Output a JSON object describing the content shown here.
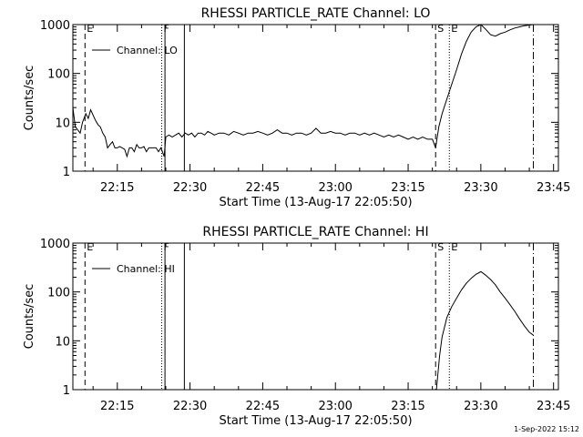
{
  "footer_timestamp": "1-Sep-2022 15:12",
  "colors": {
    "background": "#ffffff",
    "ink": "#000000"
  },
  "chart_data": [
    {
      "type": "line",
      "title": "RHESSI PARTICLE_RATE Channel: LO",
      "xlabel": "Start Time (13-Aug-17 22:05:50)",
      "ylabel": "Counts/sec",
      "y_scale": "log",
      "ylim": [
        1,
        1000
      ],
      "xlim": [
        "22:05:50",
        "23:46:00"
      ],
      "grid": false,
      "legend": {
        "position": "top-left",
        "entries": [
          "Channel: LO"
        ]
      },
      "x_tick_labels": [
        "22:15",
        "22:30",
        "22:45",
        "23:00",
        "23:15",
        "23:30",
        "23:45"
      ],
      "x_tick_times": [
        "22:15",
        "22:30",
        "22:45",
        "23:00",
        "23:15",
        "23:30",
        "23:45"
      ],
      "y_tick_labels": [
        "1",
        "10",
        "100",
        "1000"
      ],
      "y_tick_values": [
        1,
        10,
        100,
        1000
      ],
      "markers": [
        {
          "label": "E",
          "time": "22:08:20",
          "style": "dashed"
        },
        {
          "label": "F",
          "time": "22:24:10",
          "style": "dotted"
        },
        {
          "label": "",
          "time": "22:24:50",
          "style": "solid"
        },
        {
          "label": "",
          "time": "22:28:50",
          "style": "solid"
        },
        {
          "label": "S",
          "time": "23:20:40",
          "style": "dashed"
        },
        {
          "label": "E",
          "time": "23:23:30",
          "style": "dotted"
        },
        {
          "label": "",
          "time": "23:40:50",
          "style": "dashdot"
        }
      ],
      "series": [
        {
          "values": [
            [
              "22:05:50",
              20
            ],
            [
              "22:06:20",
              8
            ],
            [
              "22:06:50",
              7
            ],
            [
              "22:07:20",
              6
            ],
            [
              "22:07:50",
              10
            ],
            [
              "22:08:30",
              15
            ],
            [
              "22:09:00",
              12
            ],
            [
              "22:09:30",
              18
            ],
            [
              "22:10:00",
              14
            ],
            [
              "22:10:30",
              11
            ],
            [
              "22:11:00",
              9
            ],
            [
              "22:11:30",
              8
            ],
            [
              "22:12:00",
              6
            ],
            [
              "22:12:30",
              5
            ],
            [
              "22:13:00",
              3
            ],
            [
              "22:13:30",
              3.5
            ],
            [
              "22:14:00",
              4
            ],
            [
              "22:14:30",
              3
            ],
            [
              "22:15:00",
              3
            ],
            [
              "22:15:30",
              3.2
            ],
            [
              "22:16:00",
              3
            ],
            [
              "22:16:30",
              2.8
            ],
            [
              "22:17:00",
              2
            ],
            [
              "22:17:30",
              3
            ],
            [
              "22:18:00",
              3
            ],
            [
              "22:18:30",
              2.5
            ],
            [
              "22:19:00",
              3.5
            ],
            [
              "22:19:30",
              3
            ],
            [
              "22:20:00",
              3
            ],
            [
              "22:20:30",
              3.2
            ],
            [
              "22:21:00",
              2.5
            ],
            [
              "22:21:30",
              3
            ],
            [
              "22:22:00",
              3
            ],
            [
              "22:22:30",
              3
            ],
            [
              "22:23:00",
              3
            ],
            [
              "22:23:30",
              2.5
            ],
            [
              "22:24:00",
              3
            ],
            [
              "22:24:40",
              2
            ],
            [
              "22:25:00",
              5
            ],
            [
              "22:25:40",
              5.5
            ],
            [
              "22:26:20",
              5
            ],
            [
              "22:27:00",
              5.5
            ],
            [
              "22:27:40",
              6
            ],
            [
              "22:28:20",
              5
            ],
            [
              "22:29:00",
              6
            ],
            [
              "22:29:40",
              5.5
            ],
            [
              "22:30:20",
              6
            ],
            [
              "22:31:00",
              5
            ],
            [
              "22:31:40",
              6
            ],
            [
              "22:32:20",
              6
            ],
            [
              "22:33:00",
              5.5
            ],
            [
              "22:33:40",
              6.5
            ],
            [
              "22:34:20",
              6
            ],
            [
              "22:35:00",
              5.5
            ],
            [
              "22:36:00",
              6
            ],
            [
              "22:37:00",
              6
            ],
            [
              "22:38:00",
              5.5
            ],
            [
              "22:39:00",
              6.5
            ],
            [
              "22:40:00",
              6
            ],
            [
              "22:41:00",
              5.5
            ],
            [
              "22:42:00",
              6
            ],
            [
              "22:43:00",
              6
            ],
            [
              "22:44:00",
              6.5
            ],
            [
              "22:45:00",
              6
            ],
            [
              "22:46:00",
              5.5
            ],
            [
              "22:47:00",
              6
            ],
            [
              "22:48:00",
              7
            ],
            [
              "22:49:00",
              6
            ],
            [
              "22:50:00",
              6
            ],
            [
              "22:51:00",
              5.5
            ],
            [
              "22:52:00",
              6
            ],
            [
              "22:53:00",
              6
            ],
            [
              "22:54:00",
              5.5
            ],
            [
              "22:55:00",
              6
            ],
            [
              "22:56:00",
              7.5
            ],
            [
              "22:57:00",
              6
            ],
            [
              "22:58:00",
              6
            ],
            [
              "22:59:00",
              6.5
            ],
            [
              "23:00:00",
              6
            ],
            [
              "23:01:00",
              6
            ],
            [
              "23:02:00",
              5.5
            ],
            [
              "23:03:00",
              6
            ],
            [
              "23:04:00",
              6
            ],
            [
              "23:05:00",
              5.5
            ],
            [
              "23:06:00",
              6
            ],
            [
              "23:07:00",
              5.5
            ],
            [
              "23:08:00",
              6
            ],
            [
              "23:09:00",
              5.5
            ],
            [
              "23:10:00",
              5
            ],
            [
              "23:11:00",
              5.5
            ],
            [
              "23:12:00",
              5
            ],
            [
              "23:13:00",
              5.5
            ],
            [
              "23:14:00",
              5
            ],
            [
              "23:15:00",
              4.5
            ],
            [
              "23:16:00",
              5
            ],
            [
              "23:17:00",
              4.5
            ],
            [
              "23:18:00",
              5
            ],
            [
              "23:19:00",
              4.5
            ],
            [
              "23:20:00",
              4.5
            ],
            [
              "23:20:40",
              3
            ],
            [
              "23:21:20",
              8
            ],
            [
              "23:22:00",
              15
            ],
            [
              "23:23:00",
              30
            ],
            [
              "23:24:00",
              60
            ],
            [
              "23:25:00",
              120
            ],
            [
              "23:26:00",
              250
            ],
            [
              "23:27:00",
              450
            ],
            [
              "23:28:00",
              700
            ],
            [
              "23:29:00",
              900
            ],
            [
              "23:30:00",
              1000
            ],
            [
              "23:31:00",
              800
            ],
            [
              "23:32:00",
              620
            ],
            [
              "23:33:00",
              580
            ],
            [
              "23:34:00",
              650
            ],
            [
              "23:35:00",
              700
            ],
            [
              "23:36:00",
              780
            ],
            [
              "23:37:00",
              850
            ],
            [
              "23:38:00",
              900
            ],
            [
              "23:39:00",
              950
            ],
            [
              "23:40:00",
              980
            ],
            [
              "23:40:50",
              1000
            ]
          ]
        }
      ]
    },
    {
      "type": "line",
      "title": "RHESSI PARTICLE_RATE Channel: HI",
      "xlabel": "Start Time (13-Aug-17 22:05:50)",
      "ylabel": "Counts/sec",
      "y_scale": "log",
      "ylim": [
        1,
        1000
      ],
      "xlim": [
        "22:05:50",
        "23:46:00"
      ],
      "grid": false,
      "legend": {
        "position": "top-left",
        "entries": [
          "Channel: HI"
        ]
      },
      "x_tick_labels": [
        "22:15",
        "22:30",
        "22:45",
        "23:00",
        "23:15",
        "23:30",
        "23:45"
      ],
      "x_tick_times": [
        "22:15",
        "22:30",
        "22:45",
        "23:00",
        "23:15",
        "23:30",
        "23:45"
      ],
      "y_tick_labels": [
        "1",
        "10",
        "100",
        "1000"
      ],
      "y_tick_values": [
        1,
        10,
        100,
        1000
      ],
      "markers": [
        {
          "label": "E",
          "time": "22:08:20",
          "style": "dashed"
        },
        {
          "label": "F",
          "time": "22:24:10",
          "style": "dotted"
        },
        {
          "label": "",
          "time": "22:24:50",
          "style": "solid"
        },
        {
          "label": "",
          "time": "22:28:50",
          "style": "solid"
        },
        {
          "label": "S",
          "time": "23:20:40",
          "style": "dashed"
        },
        {
          "label": "E",
          "time": "23:23:30",
          "style": "dotted"
        },
        {
          "label": "",
          "time": "23:40:50",
          "style": "dashdot"
        }
      ],
      "series": [
        {
          "values": [
            [
              "23:20:50",
              1
            ],
            [
              "23:21:30",
              5
            ],
            [
              "23:22:00",
              12
            ],
            [
              "23:23:00",
              30
            ],
            [
              "23:24:00",
              50
            ],
            [
              "23:25:00",
              75
            ],
            [
              "23:26:00",
              110
            ],
            [
              "23:27:00",
              150
            ],
            [
              "23:28:00",
              190
            ],
            [
              "23:29:00",
              230
            ],
            [
              "23:30:00",
              260
            ],
            [
              "23:31:00",
              220
            ],
            [
              "23:32:00",
              180
            ],
            [
              "23:33:00",
              140
            ],
            [
              "23:34:00",
              100
            ],
            [
              "23:35:00",
              75
            ],
            [
              "23:36:00",
              55
            ],
            [
              "23:37:00",
              40
            ],
            [
              "23:38:00",
              28
            ],
            [
              "23:39:00",
              20
            ],
            [
              "23:40:00",
              15
            ],
            [
              "23:40:50",
              13
            ]
          ]
        }
      ]
    }
  ]
}
